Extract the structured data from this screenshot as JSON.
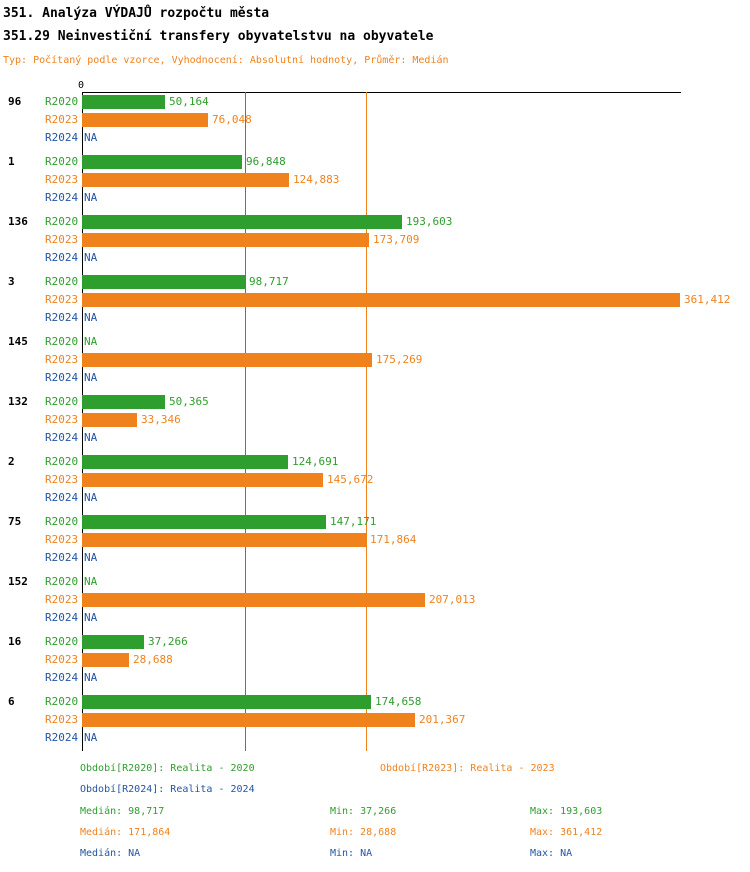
{
  "header": {
    "title": "351. Analýza VÝDAJŮ rozpočtu města",
    "subtitle": "351.29 Neinvestiční transfery obyvatelstvu na obyvatele",
    "meta": "Typ: Počítaný podle vzorce, Vyhodnocení: Absolutní hodnoty, Průměr: Medián"
  },
  "chart_data": {
    "type": "bar",
    "orientation": "horizontal",
    "axis_origin_label": "0",
    "xlim": [
      0,
      361412
    ],
    "grid": "median-lines-only",
    "series": [
      "R2020",
      "R2023",
      "R2024"
    ],
    "series_colors": {
      "R2020": "#2e9e2e",
      "R2023": "#f0821e",
      "R2024": "#2255a4"
    },
    "gridlines": [
      {
        "label": "median-2020",
        "value": 98717,
        "color": "#2e9e2e"
      },
      {
        "label": "median-2023",
        "value": 171864,
        "color": "#f0821e"
      }
    ],
    "groups": [
      {
        "label": "96",
        "bars": [
          {
            "series": "R2020",
            "value": 50164,
            "display": "50,164"
          },
          {
            "series": "R2023",
            "value": 76048,
            "display": "76,048"
          },
          {
            "series": "R2024",
            "value": null,
            "display": "NA"
          }
        ]
      },
      {
        "label": "1",
        "bars": [
          {
            "series": "R2020",
            "value": 96848,
            "display": "96,848"
          },
          {
            "series": "R2023",
            "value": 124883,
            "display": "124,883"
          },
          {
            "series": "R2024",
            "value": null,
            "display": "NA"
          }
        ]
      },
      {
        "label": "136",
        "bars": [
          {
            "series": "R2020",
            "value": 193603,
            "display": "193,603"
          },
          {
            "series": "R2023",
            "value": 173709,
            "display": "173,709"
          },
          {
            "series": "R2024",
            "value": null,
            "display": "NA"
          }
        ]
      },
      {
        "label": "3",
        "bars": [
          {
            "series": "R2020",
            "value": 98717,
            "display": "98,717"
          },
          {
            "series": "R2023",
            "value": 361412,
            "display": "361,412"
          },
          {
            "series": "R2024",
            "value": null,
            "display": "NA"
          }
        ]
      },
      {
        "label": "145",
        "bars": [
          {
            "series": "R2020",
            "value": null,
            "display": "NA"
          },
          {
            "series": "R2023",
            "value": 175269,
            "display": "175,269"
          },
          {
            "series": "R2024",
            "value": null,
            "display": "NA"
          }
        ]
      },
      {
        "label": "132",
        "bars": [
          {
            "series": "R2020",
            "value": 50365,
            "display": "50,365"
          },
          {
            "series": "R2023",
            "value": 33346,
            "display": "33,346"
          },
          {
            "series": "R2024",
            "value": null,
            "display": "NA"
          }
        ]
      },
      {
        "label": "2",
        "bars": [
          {
            "series": "R2020",
            "value": 124691,
            "display": "124,691"
          },
          {
            "series": "R2023",
            "value": 145672,
            "display": "145,672"
          },
          {
            "series": "R2024",
            "value": null,
            "display": "NA"
          }
        ]
      },
      {
        "label": "75",
        "bars": [
          {
            "series": "R2020",
            "value": 147171,
            "display": "147,171"
          },
          {
            "series": "R2023",
            "value": 171864,
            "display": "171,864"
          },
          {
            "series": "R2024",
            "value": null,
            "display": "NA"
          }
        ]
      },
      {
        "label": "152",
        "bars": [
          {
            "series": "R2020",
            "value": null,
            "display": "NA"
          },
          {
            "series": "R2023",
            "value": 207013,
            "display": "207,013"
          },
          {
            "series": "R2024",
            "value": null,
            "display": "NA"
          }
        ]
      },
      {
        "label": "16",
        "bars": [
          {
            "series": "R2020",
            "value": 37266,
            "display": "37,266"
          },
          {
            "series": "R2023",
            "value": 28688,
            "display": "28,688"
          },
          {
            "series": "R2024",
            "value": null,
            "display": "NA"
          }
        ]
      },
      {
        "label": "6",
        "bars": [
          {
            "series": "R2020",
            "value": 174658,
            "display": "174,658"
          },
          {
            "series": "R2023",
            "value": 201367,
            "display": "201,367"
          },
          {
            "series": "R2024",
            "value": null,
            "display": "NA"
          }
        ]
      }
    ]
  },
  "legend": {
    "items": [
      {
        "series": "R2020",
        "text": "Období[R2020]: Realita - 2020"
      },
      {
        "series": "R2023",
        "text": "Období[R2023]: Realita - 2023"
      },
      {
        "series": "R2024",
        "text": "Období[R2024]: Realita - 2024"
      }
    ]
  },
  "stats": {
    "rows": [
      {
        "series": "R2020",
        "median": "Medián: 98,717",
        "min": "Min: 37,266",
        "max": "Max: 193,603"
      },
      {
        "series": "R2023",
        "median": "Medián: 171,864",
        "min": "Min: 28,688",
        "max": "Max: 361,412"
      },
      {
        "series": "R2024",
        "median": "Medián: NA",
        "min": "Min: NA",
        "max": "Max: NA"
      }
    ]
  }
}
